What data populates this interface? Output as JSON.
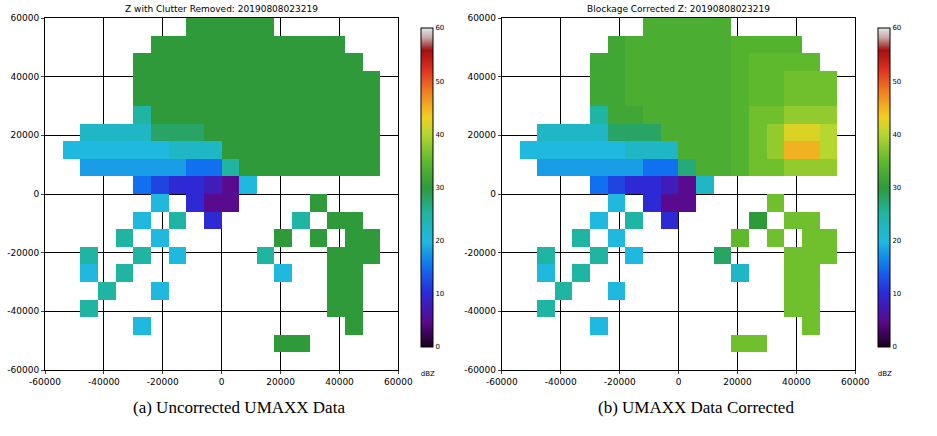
{
  "chart_data": [
    {
      "type": "heatmap",
      "title": "Z with Clutter Removed: 20190808023219",
      "caption": "(a) Uncorrected UMAXX Data",
      "x": [
        -57000,
        -51000,
        -45000,
        -39000,
        -33000,
        -27000,
        -21000,
        -15000,
        -9000,
        -3000,
        3000,
        9000,
        15000,
        21000,
        27000,
        33000,
        39000,
        45000,
        51000,
        57000
      ],
      "y": [
        -57000,
        -51000,
        -45000,
        -39000,
        -33000,
        -27000,
        -21000,
        -15000,
        -9000,
        -3000,
        3000,
        9000,
        15000,
        21000,
        27000,
        33000,
        39000,
        45000,
        51000,
        57000
      ],
      "z": [
        [
          null,
          null,
          null,
          null,
          null,
          null,
          null,
          null,
          null,
          null,
          null,
          null,
          null,
          null,
          null,
          null,
          null,
          null,
          null,
          null
        ],
        [
          null,
          null,
          null,
          null,
          null,
          null,
          null,
          null,
          null,
          null,
          null,
          null,
          null,
          30,
          30,
          null,
          null,
          null,
          null,
          null
        ],
        [
          null,
          null,
          null,
          null,
          null,
          20,
          null,
          null,
          null,
          null,
          null,
          null,
          null,
          null,
          null,
          null,
          null,
          30,
          null,
          null
        ],
        [
          null,
          null,
          25,
          null,
          null,
          null,
          null,
          null,
          null,
          null,
          null,
          null,
          null,
          null,
          null,
          null,
          30,
          30,
          null,
          null
        ],
        [
          null,
          null,
          null,
          25,
          null,
          null,
          20,
          null,
          null,
          null,
          null,
          null,
          null,
          null,
          null,
          null,
          30,
          30,
          null,
          null
        ],
        [
          null,
          null,
          20,
          null,
          25,
          null,
          null,
          null,
          null,
          null,
          null,
          null,
          null,
          20,
          null,
          null,
          30,
          30,
          null,
          null
        ],
        [
          null,
          null,
          25,
          null,
          null,
          25,
          null,
          20,
          null,
          null,
          null,
          null,
          25,
          null,
          null,
          null,
          30,
          30,
          30,
          null
        ],
        [
          null,
          null,
          null,
          null,
          25,
          null,
          20,
          null,
          null,
          null,
          null,
          null,
          null,
          30,
          null,
          30,
          null,
          30,
          30,
          null
        ],
        [
          null,
          null,
          null,
          null,
          null,
          20,
          null,
          25,
          null,
          10,
          null,
          null,
          null,
          null,
          25,
          null,
          30,
          30,
          null,
          null
        ],
        [
          null,
          null,
          null,
          null,
          null,
          null,
          20,
          null,
          10,
          5,
          5,
          null,
          null,
          null,
          null,
          30,
          null,
          null,
          null,
          null
        ],
        [
          null,
          null,
          null,
          null,
          null,
          15,
          12,
          10,
          10,
          8,
          5,
          20,
          null,
          null,
          null,
          null,
          null,
          null,
          null,
          null
        ],
        [
          null,
          null,
          18,
          18,
          18,
          18,
          18,
          18,
          15,
          15,
          25,
          30,
          30,
          30,
          30,
          30,
          30,
          30,
          30,
          null
        ],
        [
          null,
          20,
          20,
          20,
          20,
          20,
          20,
          22,
          22,
          22,
          30,
          30,
          30,
          30,
          30,
          30,
          30,
          30,
          30,
          null
        ],
        [
          null,
          null,
          22,
          22,
          22,
          22,
          28,
          28,
          28,
          30,
          30,
          30,
          30,
          30,
          30,
          30,
          30,
          30,
          30,
          null
        ],
        [
          null,
          null,
          null,
          null,
          null,
          25,
          30,
          30,
          30,
          30,
          30,
          30,
          30,
          30,
          30,
          30,
          30,
          30,
          30,
          null
        ],
        [
          null,
          null,
          null,
          null,
          null,
          30,
          30,
          30,
          30,
          30,
          30,
          30,
          30,
          30,
          30,
          30,
          30,
          30,
          30,
          null
        ],
        [
          null,
          null,
          null,
          null,
          null,
          30,
          30,
          30,
          30,
          30,
          30,
          30,
          30,
          30,
          30,
          30,
          30,
          30,
          30,
          null
        ],
        [
          null,
          null,
          null,
          null,
          null,
          30,
          30,
          30,
          30,
          30,
          30,
          30,
          30,
          30,
          30,
          30,
          30,
          30,
          null,
          null
        ],
        [
          null,
          null,
          null,
          null,
          null,
          null,
          30,
          30,
          30,
          30,
          30,
          30,
          30,
          30,
          30,
          30,
          30,
          null,
          null,
          null
        ],
        [
          null,
          null,
          null,
          null,
          null,
          null,
          null,
          null,
          30,
          30,
          30,
          30,
          30,
          null,
          null,
          null,
          null,
          null,
          null,
          null
        ]
      ],
      "xlim": [
        -60000,
        60000
      ],
      "ylim": [
        -60000,
        60000
      ],
      "xticks": [
        -60000,
        -40000,
        -20000,
        0,
        20000,
        40000,
        60000
      ],
      "yticks": [
        -60000,
        -40000,
        -20000,
        0,
        20000,
        40000,
        60000
      ],
      "grid": true,
      "colorbar": {
        "label": "dBZ",
        "range": [
          0,
          60
        ],
        "ticks": [
          0,
          10,
          20,
          30,
          40,
          50,
          60
        ]
      }
    },
    {
      "type": "heatmap",
      "title": "Blockage Corrected Z: 20190808023219",
      "caption": "(b) UMAXX Data Corrected",
      "x": [
        -57000,
        -51000,
        -45000,
        -39000,
        -33000,
        -27000,
        -21000,
        -15000,
        -9000,
        -3000,
        3000,
        9000,
        15000,
        21000,
        27000,
        33000,
        39000,
        45000,
        51000,
        57000
      ],
      "y": [
        -57000,
        -51000,
        -45000,
        -39000,
        -33000,
        -27000,
        -21000,
        -15000,
        -9000,
        -3000,
        3000,
        9000,
        15000,
        21000,
        27000,
        33000,
        39000,
        45000,
        51000,
        57000
      ],
      "z": [
        [
          null,
          null,
          null,
          null,
          null,
          null,
          null,
          null,
          null,
          null,
          null,
          null,
          null,
          null,
          null,
          null,
          null,
          null,
          null,
          null
        ],
        [
          null,
          null,
          null,
          null,
          null,
          null,
          null,
          null,
          null,
          null,
          null,
          null,
          null,
          36,
          36,
          null,
          null,
          null,
          null,
          null
        ],
        [
          null,
          null,
          null,
          null,
          null,
          20,
          null,
          null,
          null,
          null,
          null,
          null,
          null,
          null,
          null,
          null,
          null,
          36,
          null,
          null
        ],
        [
          null,
          null,
          25,
          null,
          null,
          null,
          null,
          null,
          null,
          null,
          null,
          null,
          null,
          null,
          null,
          null,
          36,
          36,
          null,
          null
        ],
        [
          null,
          null,
          null,
          25,
          null,
          null,
          20,
          null,
          null,
          null,
          null,
          null,
          null,
          null,
          null,
          null,
          36,
          36,
          null,
          null
        ],
        [
          null,
          null,
          20,
          null,
          25,
          null,
          null,
          null,
          null,
          null,
          null,
          null,
          null,
          22,
          null,
          null,
          36,
          36,
          null,
          null
        ],
        [
          null,
          null,
          25,
          null,
          null,
          25,
          null,
          20,
          null,
          null,
          null,
          null,
          28,
          null,
          null,
          null,
          36,
          36,
          36,
          null
        ],
        [
          null,
          null,
          null,
          null,
          25,
          null,
          20,
          null,
          null,
          null,
          null,
          null,
          null,
          35,
          null,
          36,
          null,
          36,
          36,
          null
        ],
        [
          null,
          null,
          null,
          null,
          null,
          20,
          null,
          25,
          null,
          10,
          null,
          null,
          null,
          null,
          30,
          null,
          36,
          36,
          null,
          null
        ],
        [
          null,
          null,
          null,
          null,
          null,
          null,
          20,
          null,
          10,
          5,
          5,
          null,
          null,
          null,
          null,
          36,
          null,
          null,
          null,
          null
        ],
        [
          null,
          null,
          null,
          null,
          null,
          15,
          12,
          10,
          10,
          8,
          5,
          22,
          null,
          null,
          null,
          null,
          null,
          null,
          null,
          null
        ],
        [
          null,
          null,
          18,
          18,
          18,
          18,
          18,
          18,
          15,
          15,
          27,
          33,
          33,
          34,
          36,
          36,
          38,
          38,
          38,
          null
        ],
        [
          null,
          20,
          20,
          20,
          20,
          20,
          20,
          22,
          22,
          22,
          33,
          33,
          33,
          34,
          36,
          38,
          45,
          45,
          40,
          null
        ],
        [
          null,
          null,
          22,
          22,
          22,
          22,
          28,
          28,
          28,
          33,
          33,
          33,
          33,
          34,
          36,
          38,
          42,
          42,
          40,
          null
        ],
        [
          null,
          null,
          null,
          null,
          null,
          25,
          32,
          32,
          33,
          33,
          33,
          33,
          33,
          34,
          36,
          36,
          38,
          38,
          38,
          null
        ],
        [
          null,
          null,
          null,
          null,
          null,
          32,
          32,
          33,
          33,
          33,
          33,
          33,
          33,
          34,
          35,
          35,
          36,
          36,
          36,
          null
        ],
        [
          null,
          null,
          null,
          null,
          null,
          32,
          32,
          33,
          33,
          33,
          33,
          33,
          33,
          34,
          35,
          35,
          36,
          36,
          36,
          null
        ],
        [
          null,
          null,
          null,
          null,
          null,
          32,
          32,
          33,
          33,
          33,
          33,
          33,
          33,
          34,
          35,
          35,
          35,
          35,
          null,
          null
        ],
        [
          null,
          null,
          null,
          null,
          null,
          null,
          32,
          33,
          33,
          33,
          33,
          33,
          33,
          34,
          34,
          34,
          34,
          null,
          null,
          null
        ],
        [
          null,
          null,
          null,
          null,
          null,
          null,
          null,
          null,
          33,
          33,
          33,
          33,
          33,
          null,
          null,
          null,
          null,
          null,
          null,
          null
        ]
      ],
      "xlim": [
        -60000,
        60000
      ],
      "ylim": [
        -60000,
        60000
      ],
      "xticks": [
        -60000,
        -40000,
        -20000,
        0,
        20000,
        40000,
        60000
      ],
      "yticks": [
        -60000,
        -40000,
        -20000,
        0,
        20000,
        40000,
        60000
      ],
      "grid": true,
      "colorbar": {
        "label": "dBZ",
        "range": [
          0,
          60
        ],
        "ticks": [
          0,
          10,
          20,
          30,
          40,
          50,
          60
        ]
      }
    }
  ]
}
